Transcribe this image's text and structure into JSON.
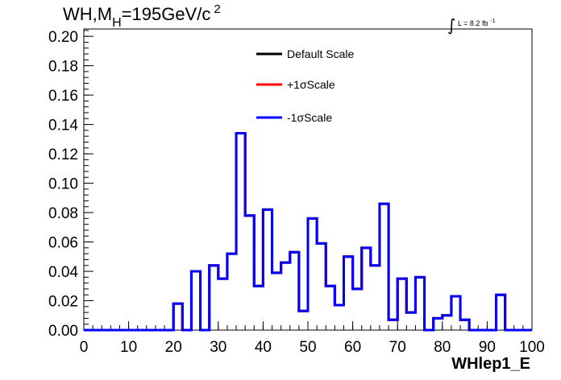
{
  "title": {
    "prefix": "WH,M",
    "subscript": "H",
    "value": "=195GeV/c",
    "superscript": "2"
  },
  "luminosity": {
    "integral": "∫",
    "text": "L = 8.2 fb",
    "exponent": "-1"
  },
  "chart_data": {
    "type": "line",
    "style": "step-histogram",
    "xlabel": "WHlep1_E",
    "ylabel": "",
    "xlim": [
      0,
      100
    ],
    "ylim": [
      0,
      0.205
    ],
    "bin_width": 2,
    "x_ticks": [
      "0",
      "10",
      "20",
      "30",
      "40",
      "50",
      "60",
      "70",
      "80",
      "90",
      "100"
    ],
    "x_tick_values": [
      0,
      10,
      20,
      30,
      40,
      50,
      60,
      70,
      80,
      90,
      100
    ],
    "y_ticks": [
      "0.00",
      "0.02",
      "0.04",
      "0.06",
      "0.08",
      "0.10",
      "0.12",
      "0.14",
      "0.16",
      "0.18",
      "0.20"
    ],
    "y_tick_values": [
      0,
      0.02,
      0.04,
      0.06,
      0.08,
      0.1,
      0.12,
      0.14,
      0.16,
      0.18,
      0.2
    ],
    "legend_position": "top-center",
    "series": [
      {
        "name": "Default Scale",
        "color": "#000000",
        "values": [
          0,
          0,
          0,
          0,
          0,
          0,
          0,
          0,
          0,
          0,
          0.018,
          0,
          0.04,
          0,
          0.044,
          0.035,
          0.052,
          0.134,
          0.078,
          0.03,
          0.082,
          0.039,
          0.046,
          0.053,
          0.013,
          0.076,
          0.059,
          0.03,
          0.017,
          0.05,
          0.028,
          0.056,
          0.044,
          0.086,
          0.007,
          0.035,
          0.012,
          0.036,
          0,
          0.008,
          0.01,
          0.023,
          0.007,
          0,
          0,
          0,
          0.024,
          0,
          0,
          0
        ]
      },
      {
        "name": "+1σScale",
        "color": "#ff0000",
        "values": [
          0,
          0,
          0,
          0,
          0,
          0,
          0,
          0,
          0,
          0,
          0.018,
          0,
          0.04,
          0,
          0.044,
          0.035,
          0.052,
          0.134,
          0.078,
          0.03,
          0.082,
          0.039,
          0.046,
          0.053,
          0.013,
          0.076,
          0.059,
          0.03,
          0.017,
          0.05,
          0.028,
          0.056,
          0.044,
          0.086,
          0.007,
          0.035,
          0.012,
          0.036,
          0,
          0.008,
          0.01,
          0.023,
          0.007,
          0,
          0,
          0,
          0.024,
          0,
          0,
          0
        ]
      },
      {
        "name": "-1σScale",
        "color": "#0000ff",
        "values": [
          0,
          0,
          0,
          0,
          0,
          0,
          0,
          0,
          0,
          0,
          0.018,
          0,
          0.04,
          0,
          0.044,
          0.035,
          0.052,
          0.134,
          0.078,
          0.03,
          0.082,
          0.039,
          0.046,
          0.053,
          0.013,
          0.076,
          0.059,
          0.03,
          0.017,
          0.05,
          0.028,
          0.056,
          0.044,
          0.086,
          0.007,
          0.035,
          0.012,
          0.036,
          0,
          0.008,
          0.01,
          0.023,
          0.007,
          0,
          0,
          0,
          0.024,
          0,
          0,
          0
        ]
      }
    ]
  }
}
